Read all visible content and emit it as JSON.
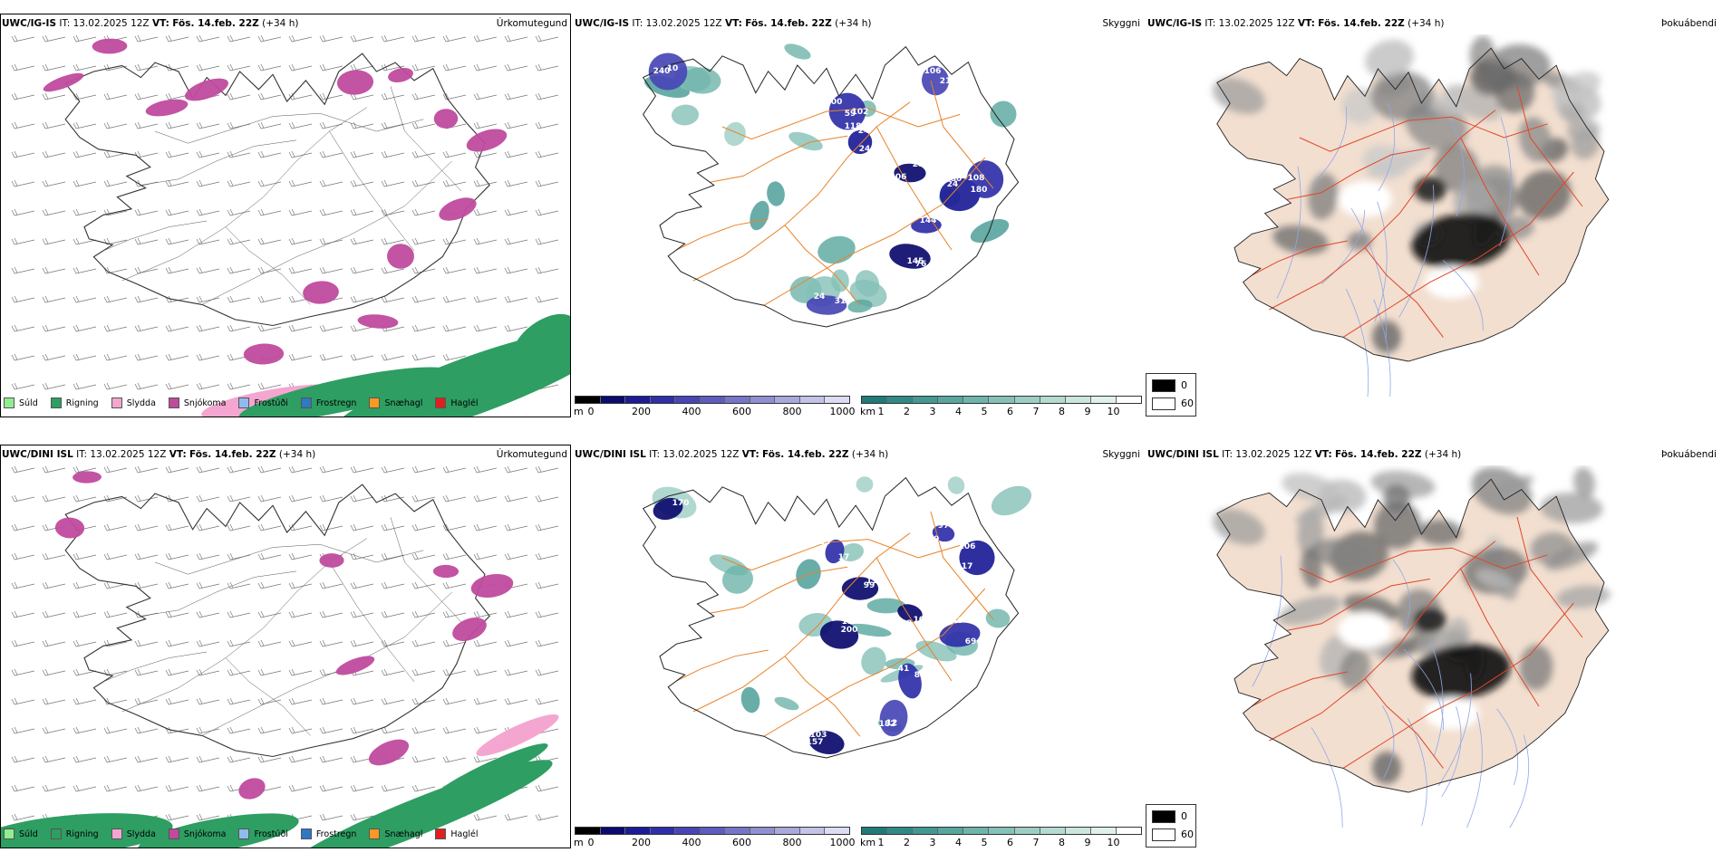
{
  "rows": [
    {
      "id": "top",
      "model": "UWC/IG-IS",
      "it_label": "IT:",
      "it_value": "13.02.2025 12Z",
      "vt_label": "VT:",
      "vt_value": "Fös. 14.feb. 22Z",
      "lead": "(+34 h)",
      "precip_title": "Úrkomutegund",
      "cloud_title": "Skyggni",
      "fog_title": "Þokuábendi",
      "cloud_labels": [
        "102",
        "24",
        "28",
        "106",
        "24",
        "180",
        "144",
        "76",
        "31",
        "10",
        "100",
        "118",
        "106",
        "21",
        "80",
        "108",
        "34",
        "145",
        "24",
        "240",
        "59",
        "24"
      ]
    },
    {
      "id": "bottom",
      "model": "UWC/DINI ISL",
      "it_label": "IT:",
      "it_value": "13.02.2025 12Z",
      "vt_label": "VT:",
      "vt_value": "Fös. 14.feb. 22Z",
      "lead": "(+34 h)",
      "precip_title": "Úrkomutegund",
      "cloud_title": "Skyggni",
      "fog_title": "Þokuábendi",
      "cloud_labels": [
        "17",
        "11",
        "105",
        "97",
        "117",
        "146",
        "85",
        "182",
        "154",
        "103",
        "170",
        "113",
        "99",
        "68",
        "119",
        "106",
        "69",
        "41",
        "12",
        "200",
        "157"
      ]
    }
  ],
  "precip_legend": [
    {
      "label": "Súld",
      "color": "#90ee90"
    },
    {
      "label": "Rigning",
      "color": "#2e9e63"
    },
    {
      "label": "Slydda",
      "color": "#f4a6d0"
    },
    {
      "label": "Snjókoma",
      "color": "#c04a9e"
    },
    {
      "label": "Frostúði",
      "color": "#8fbcef"
    },
    {
      "label": "Frostregn",
      "color": "#2f78c4"
    },
    {
      "label": "Snæhagl",
      "color": "#f59a23"
    },
    {
      "label": "Haglél",
      "color": "#e02020"
    }
  ],
  "cloud_base_scale": {
    "unit": "m",
    "ticks": [
      "0",
      "200",
      "400",
      "600",
      "800",
      "1000"
    ],
    "colors": [
      "#000000",
      "#0b0b6e",
      "#1c1c96",
      "#2f2fa8",
      "#4646b5",
      "#5d5dbf",
      "#7676c8",
      "#8f8fd2",
      "#a8a8dc",
      "#c3c3e8",
      "#dcdcf3"
    ]
  },
  "visibility_scale": {
    "unit": "km",
    "ticks": [
      "1",
      "2",
      "3",
      "4",
      "5",
      "6",
      "7",
      "8",
      "9",
      "10"
    ],
    "colors": [
      "#1f7a78",
      "#2f8a86",
      "#439892",
      "#58a69e",
      "#6eb4aa",
      "#85c1b7",
      "#9dcec4",
      "#b4dad1",
      "#cae6de",
      "#e0f1ec",
      "#ffffff"
    ]
  },
  "fog_legend": [
    {
      "label": "0",
      "color": "#000000"
    },
    {
      "label": "60",
      "color": "#ffffff"
    }
  ]
}
